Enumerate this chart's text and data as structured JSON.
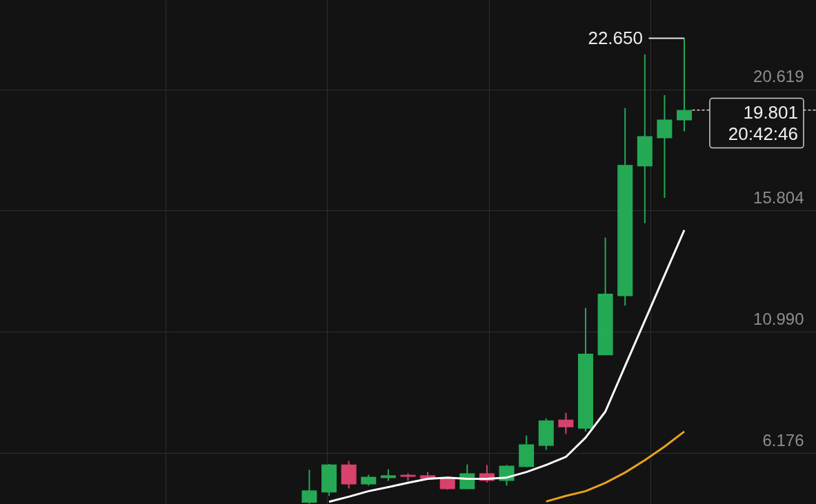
{
  "chart_data": {
    "type": "candlestick",
    "categories": [
      null,
      null,
      null,
      null,
      null,
      null,
      null,
      null,
      null,
      null,
      null,
      null,
      null,
      null,
      null,
      null,
      null,
      null,
      null,
      null,
      null,
      null,
      null,
      null,
      null,
      null,
      null,
      null,
      null,
      null,
      null,
      null,
      null,
      null,
      null,
      null,
      null,
      null,
      null,
      null,
      null
    ],
    "ohlc": [
      null,
      null,
      null,
      null,
      null,
      null,
      null,
      null,
      null,
      null,
      null,
      null,
      null,
      null,
      null,
      [
        4.2,
        5.51,
        4.16,
        4.69
      ],
      [
        4.61,
        5.74,
        4.47,
        5.72
      ],
      [
        5.72,
        5.86,
        4.77,
        4.93
      ],
      [
        4.93,
        5.31,
        4.88,
        5.23
      ],
      [
        5.18,
        5.53,
        5.07,
        5.29
      ],
      [
        5.31,
        5.37,
        5.07,
        5.23
      ],
      [
        5.29,
        5.42,
        5.15,
        5.15
      ],
      [
        5.21,
        5.24,
        4.72,
        4.74
      ],
      [
        4.74,
        5.72,
        4.74,
        5.37
      ],
      [
        5.37,
        5.7,
        5.01,
        5.07
      ],
      [
        5.07,
        5.7,
        4.88,
        5.67
      ],
      [
        5.62,
        6.87,
        5.62,
        6.52
      ],
      [
        6.46,
        7.55,
        6.3,
        7.47
      ],
      [
        7.5,
        7.77,
        6.93,
        7.2
      ],
      [
        7.14,
        11.94,
        7.03,
        10.12
      ],
      [
        10.06,
        14.73,
        10.06,
        12.5
      ],
      [
        12.41,
        19.88,
        12.03,
        17.62
      ],
      [
        17.56,
        22.01,
        15.3,
        18.76
      ],
      [
        18.68,
        20.39,
        16.31,
        19.42
      ],
      [
        19.39,
        22.65,
        18.95,
        19.801
      ],
      null,
      null,
      null,
      null,
      null,
      null
    ],
    "colors": [
      null,
      null,
      null,
      null,
      null,
      null,
      null,
      null,
      null,
      null,
      null,
      null,
      null,
      null,
      null,
      "#26a955",
      "#26a955",
      "#d6426c",
      "#26a955",
      "#26a955",
      "#d6426c",
      "#d6426c",
      "#d6426c",
      "#26a955",
      "#d6426c",
      "#26a955",
      "#26a955",
      "#26a955",
      "#d6426c",
      "#26a955",
      "#26a955",
      "#26a955",
      "#26a955",
      "#26a955",
      "#26a955",
      null,
      null,
      null,
      null,
      null,
      null
    ],
    "series": [
      {
        "type": "line",
        "color": "#ffffff",
        "values": [
          null,
          null,
          null,
          null,
          null,
          null,
          null,
          null,
          null,
          null,
          null,
          null,
          null,
          null,
          null,
          null,
          4.24,
          4.44,
          4.66,
          4.82,
          4.99,
          5.15,
          5.2,
          5.15,
          5.15,
          5.2,
          5.42,
          5.7,
          6.02,
          6.79,
          7.82,
          9.63,
          11.43,
          13.23,
          15.03,
          null,
          null,
          null,
          null,
          null,
          null
        ]
      },
      {
        "type": "line",
        "color": "#e8a31c",
        "values": [
          null,
          null,
          null,
          null,
          null,
          null,
          null,
          null,
          null,
          null,
          null,
          null,
          null,
          null,
          null,
          null,
          null,
          null,
          null,
          null,
          null,
          null,
          null,
          null,
          null,
          null,
          null,
          4.25,
          4.47,
          4.66,
          4.99,
          5.4,
          5.89,
          6.43,
          7.03,
          null,
          null,
          null,
          null,
          null,
          null
        ]
      }
    ],
    "ylim": [
      4.15,
      24.17
    ],
    "yticks": [
      20.619,
      15.804,
      {
        "value": 10.99,
        "label": "10.990"
      },
      6.176
    ],
    "grid": true,
    "tick_labels": "y",
    "marker": "none",
    "ref_lines": [
      {
        "axis": "y",
        "value": 19.801,
        "label": "19.801\n20:42:46",
        "line_style": "dashed",
        "color": "#ffffff"
      }
    ],
    "annotations": [
      "22.650"
    ]
  }
}
